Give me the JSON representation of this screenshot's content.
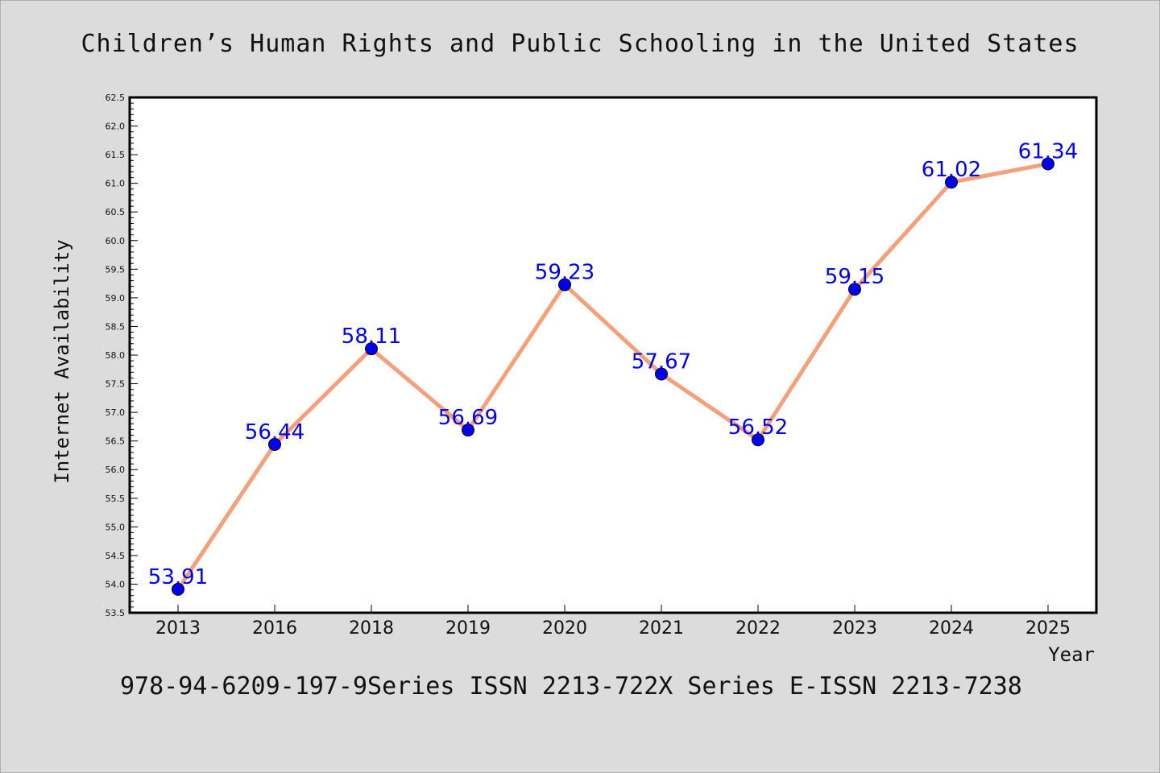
{
  "page": {
    "title": "Children’s Human Rights and Public Schooling in the United States",
    "footer": "978-94-6209-197-9Series ISSN 2213-722X Series E-ISSN 2213-7238"
  },
  "chart_data": {
    "type": "line",
    "title": "Children’s Human Rights and Public Schooling in the United States",
    "xlabel": "Year",
    "ylabel": "Internet Availability",
    "categories": [
      "2013",
      "2016",
      "2018",
      "2019",
      "2020",
      "2021",
      "2022",
      "2023",
      "2024",
      "2025"
    ],
    "series": [
      {
        "values": [
          53.91,
          56.44,
          58.11,
          56.69,
          59.23,
          57.67,
          56.52,
          59.15,
          61.02,
          61.34
        ],
        "line_color": "#f4a07a",
        "marker_color": "#0000ee",
        "label_color": "#0000ee"
      }
    ],
    "data_labels": [
      "53.91",
      "56.44",
      "58.11",
      "56.69",
      "59.23",
      "57.67",
      "56.52",
      "59.15",
      "61.02",
      "61.34"
    ],
    "ylim": [
      53.5,
      62.5
    ],
    "yticks": [
      "53.5",
      "54.0",
      "54.5",
      "55.0",
      "55.5",
      "56.0",
      "56.5",
      "57.0",
      "57.5",
      "58.0",
      "58.5",
      "59.0",
      "59.5",
      "60.0",
      "60.5",
      "61.0",
      "61.5",
      "62.0",
      "62.5"
    ],
    "grid": false,
    "legend": "none"
  }
}
